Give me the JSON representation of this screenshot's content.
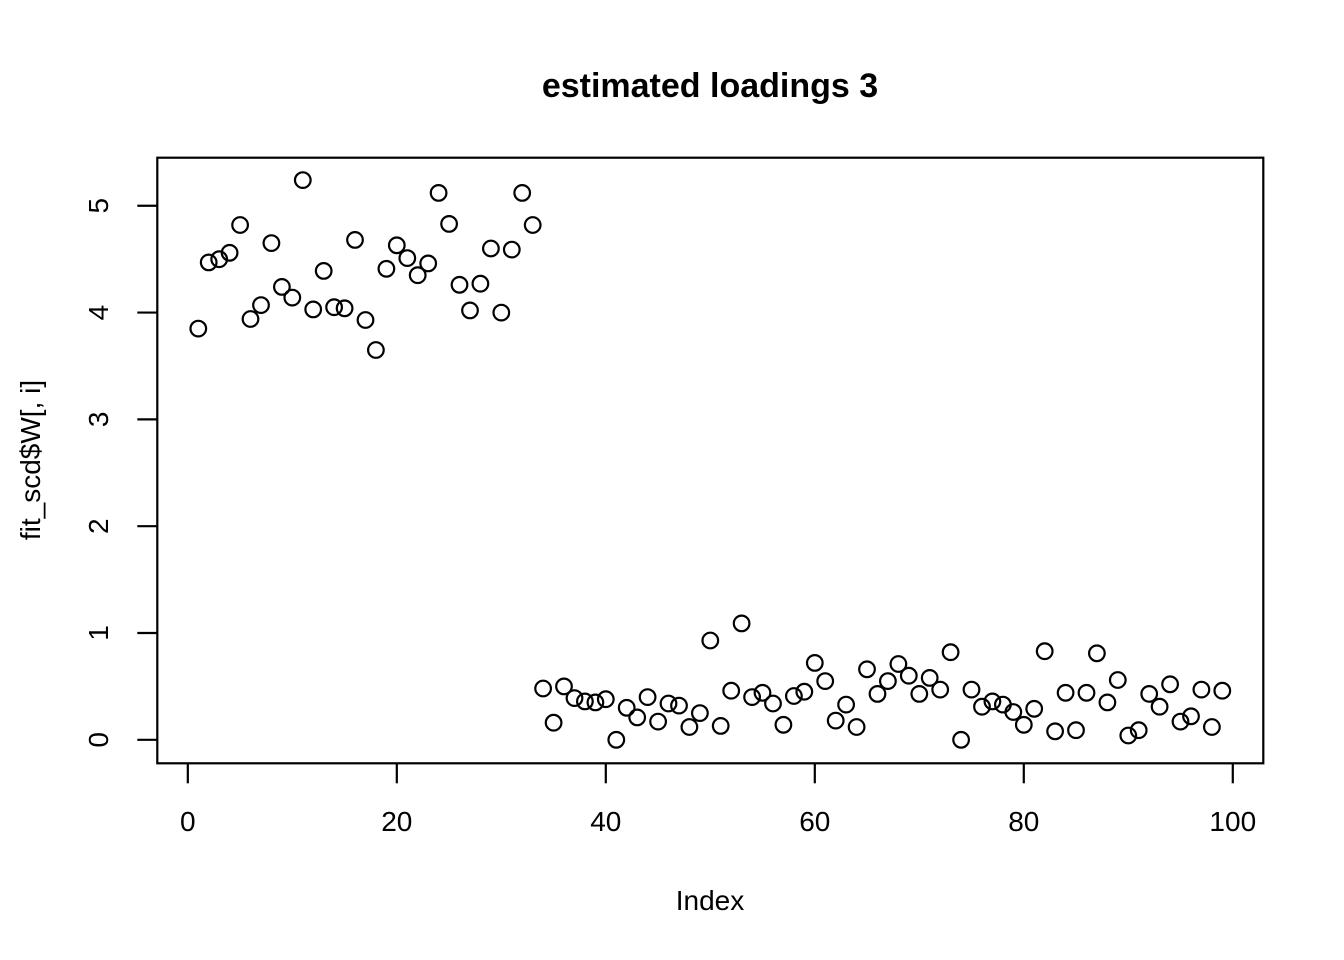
{
  "figure": {
    "background_color": "#ffffff",
    "foreground_color": "#000000"
  },
  "chart_data": {
    "type": "scatter",
    "title": "estimated loadings 3",
    "xlabel": "Index",
    "ylabel": "fit_scd$W[, i]",
    "x_ticks": [
      0,
      20,
      40,
      60,
      80,
      100
    ],
    "y_ticks": [
      0,
      1,
      2,
      3,
      4,
      5
    ],
    "xlim": [
      -2.92,
      102.92
    ],
    "ylim": [
      -0.22,
      5.45
    ],
    "grid": false,
    "legend": null,
    "marker": {
      "shape": "open-circle",
      "color": "#000000"
    },
    "n_points": 99,
    "x": [
      1,
      2,
      3,
      4,
      5,
      6,
      7,
      8,
      9,
      10,
      11,
      12,
      13,
      14,
      15,
      16,
      17,
      18,
      19,
      20,
      21,
      22,
      23,
      24,
      25,
      26,
      27,
      28,
      29,
      30,
      31,
      32,
      33,
      34,
      35,
      36,
      37,
      38,
      39,
      40,
      41,
      42,
      43,
      44,
      45,
      46,
      47,
      48,
      49,
      50,
      51,
      52,
      53,
      54,
      55,
      56,
      57,
      58,
      59,
      60,
      61,
      62,
      63,
      64,
      65,
      66,
      67,
      68,
      69,
      70,
      71,
      72,
      73,
      74,
      75,
      76,
      77,
      78,
      79,
      80,
      81,
      82,
      83,
      84,
      85,
      86,
      87,
      88,
      89,
      90,
      91,
      92,
      93,
      94,
      95,
      96,
      97,
      98,
      99
    ],
    "y": [
      3.85,
      4.47,
      4.5,
      4.56,
      4.82,
      3.94,
      4.07,
      4.65,
      4.24,
      4.14,
      5.24,
      4.03,
      4.39,
      4.05,
      4.04,
      4.68,
      3.93,
      3.65,
      4.41,
      4.63,
      4.51,
      4.35,
      4.46,
      5.12,
      4.83,
      4.26,
      4.02,
      4.27,
      4.6,
      4.0,
      4.59,
      5.12,
      4.82,
      0.48,
      0.16,
      0.5,
      0.39,
      0.36,
      0.35,
      0.38,
      0.0,
      0.3,
      0.21,
      0.4,
      0.17,
      0.34,
      0.32,
      0.12,
      0.25,
      0.93,
      0.13,
      0.46,
      1.09,
      0.4,
      0.44,
      0.34,
      0.14,
      0.41,
      0.45,
      0.72,
      0.55,
      0.18,
      0.33,
      0.12,
      0.66,
      0.43,
      0.55,
      0.71,
      0.6,
      0.43,
      0.58,
      0.47,
      0.82,
      0.0,
      0.47,
      0.31,
      0.36,
      0.33,
      0.26,
      0.14,
      0.29,
      0.83,
      0.08,
      0.44,
      0.09,
      0.44,
      0.81,
      0.35,
      0.56,
      0.04,
      0.09,
      0.43,
      0.31,
      0.52,
      0.17,
      0.22,
      0.47,
      0.12,
      0.46
    ]
  }
}
